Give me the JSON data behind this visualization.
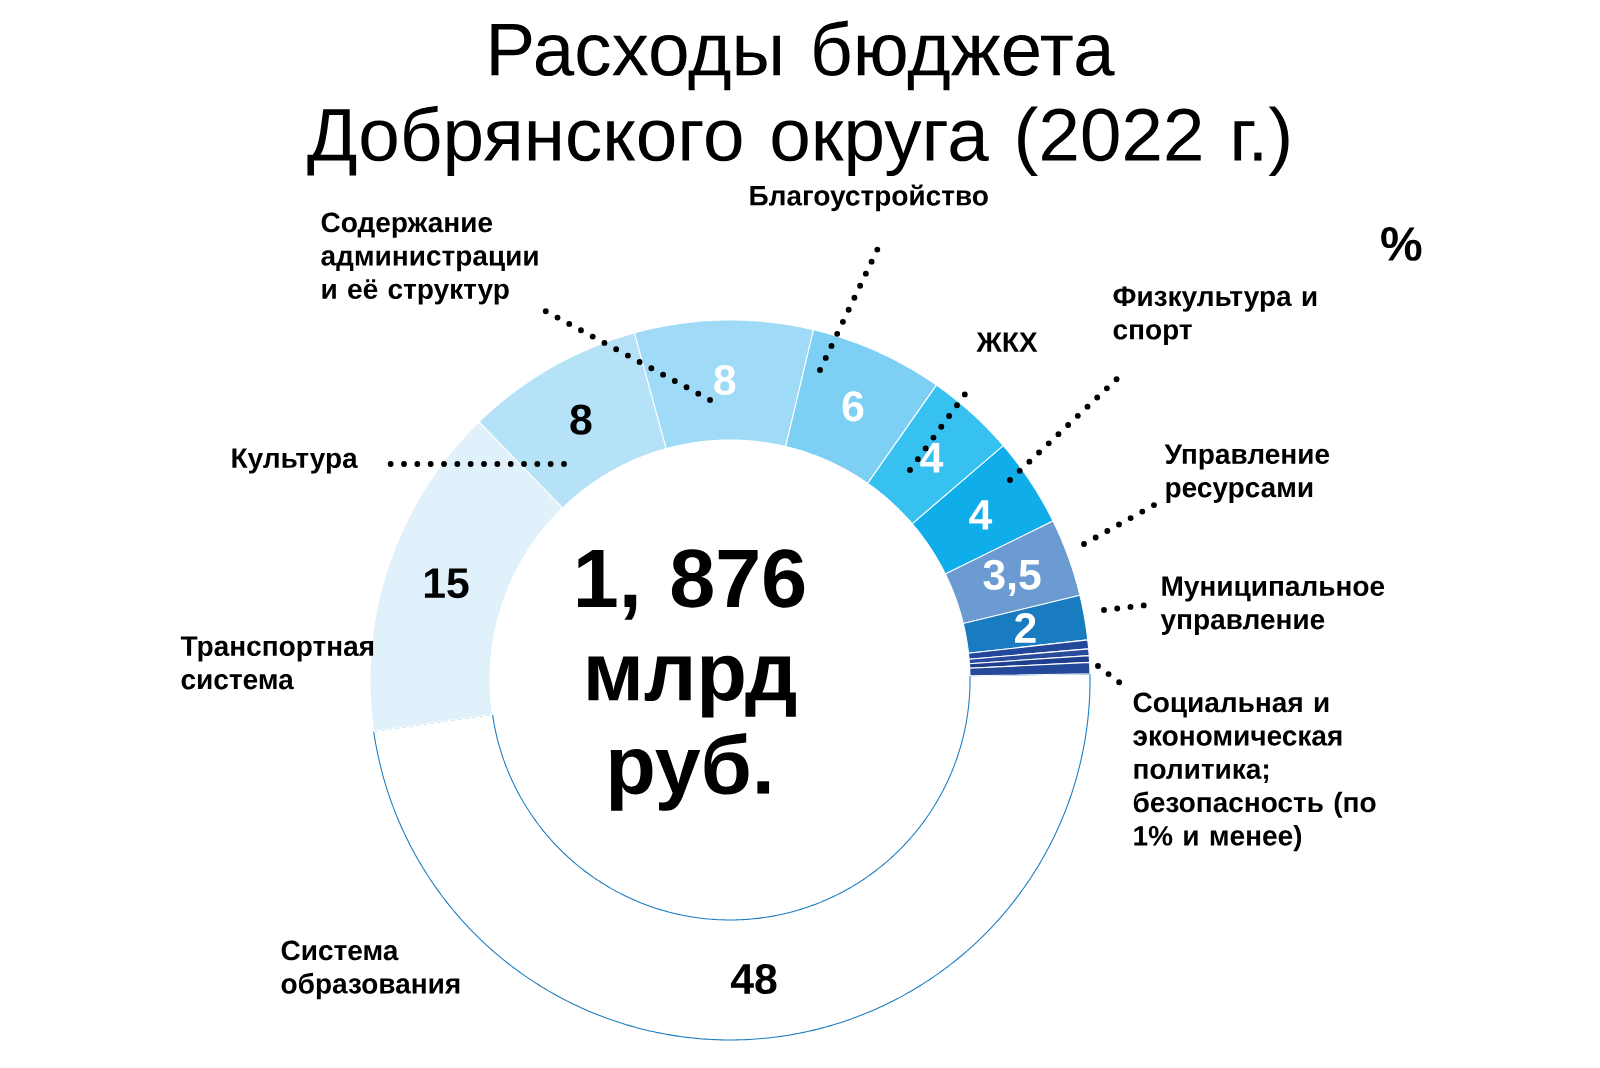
{
  "chart_data": {
    "type": "donut",
    "title": "Расходы бюджета Добрянского округа (2022 г.)",
    "categories": [
      "Система образования",
      "Транспортная система",
      "Культура",
      "Содержание администрации и её структур",
      "Благоустройство",
      "ЖКХ",
      "Физкультура и спорт",
      "Управление ресурсами",
      "Муниципальное управление",
      null,
      null,
      null,
      "**Социальная и экономическая политика; безопасность** (по 1% и менее)"
    ],
    "values": [
      48,
      15,
      8,
      8,
      6,
      4,
      4,
      3.5,
      2,
      0.4,
      0.3,
      0.3,
      0.5
    ],
    "colors": [
      "#ffffff",
      "#e1f1fb",
      "#b6e2f8",
      "#9fdaf6",
      "#7dd0f4",
      "#36c1f0",
      "#0fadea",
      "#6c9bd2",
      "#1a7cc0",
      "#23479a",
      "#2a4b9c",
      "#1e3f8e",
      "#24489a"
    ],
    "value_labels": [
      "48",
      "15",
      "8",
      "8",
      "6",
      "4",
      "4",
      "3,5",
      "2",
      null,
      null,
      null,
      null
    ],
    "annotations": [
      "%",
      "1, 876 млрд руб."
    ]
  }
}
